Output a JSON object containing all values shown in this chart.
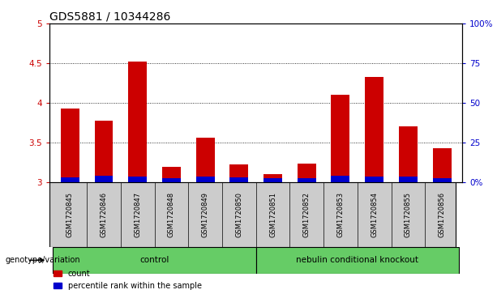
{
  "title": "GDS5881 / 10344286",
  "samples": [
    "GSM1720845",
    "GSM1720846",
    "GSM1720847",
    "GSM1720848",
    "GSM1720849",
    "GSM1720850",
    "GSM1720851",
    "GSM1720852",
    "GSM1720853",
    "GSM1720854",
    "GSM1720855",
    "GSM1720856"
  ],
  "red_values": [
    3.93,
    3.78,
    4.52,
    3.19,
    3.56,
    3.22,
    3.1,
    3.24,
    4.1,
    4.33,
    3.7,
    3.43
  ],
  "blue_values": [
    0.06,
    0.08,
    0.07,
    0.05,
    0.07,
    0.06,
    0.05,
    0.05,
    0.08,
    0.07,
    0.07,
    0.05
  ],
  "ylim_left": [
    3.0,
    5.0
  ],
  "ylim_right": [
    0,
    100
  ],
  "yticks_left": [
    3.0,
    3.5,
    4.0,
    4.5,
    5.0
  ],
  "ytick_labels_left": [
    "3",
    "3.5",
    "4",
    "4.5",
    "5"
  ],
  "yticks_right": [
    0,
    25,
    50,
    75,
    100
  ],
  "ytick_labels_right": [
    "0%",
    "25",
    "50",
    "75",
    "100%"
  ],
  "groups": [
    {
      "label": "control",
      "start": 0,
      "end": 5
    },
    {
      "label": "nebulin conditional knockout",
      "start": 6,
      "end": 11
    }
  ],
  "group_color": "#66cc66",
  "sample_bg_color": "#cccccc",
  "group_row_label": "genotype/variation",
  "legend_items": [
    {
      "color": "#cc0000",
      "label": "count"
    },
    {
      "color": "#0000cc",
      "label": "percentile rank within the sample"
    }
  ],
  "bar_width": 0.55,
  "left_axis_color": "#cc0000",
  "right_axis_color": "#0000cc",
  "title_fontsize": 10,
  "tick_fontsize": 7.5,
  "bar_bottom": 3.0
}
